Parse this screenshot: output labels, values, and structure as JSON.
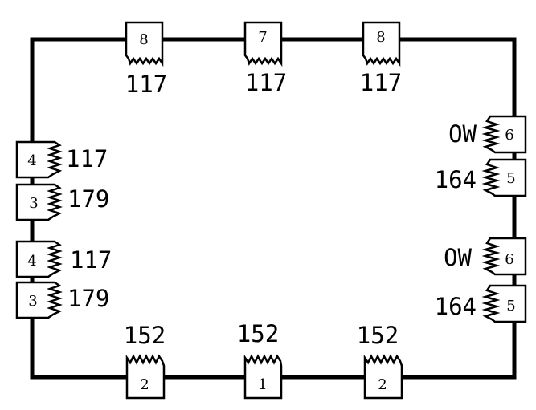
{
  "diagram": {
    "top": [
      {
        "piece": "8",
        "label": "117"
      },
      {
        "piece": "7",
        "label": "117"
      },
      {
        "piece": "8",
        "label": "117"
      }
    ],
    "bottom": [
      {
        "piece": "2",
        "label": "152"
      },
      {
        "piece": "1",
        "label": "152"
      },
      {
        "piece": "2",
        "label": "152"
      }
    ],
    "left": [
      {
        "piece": "4",
        "label": "117"
      },
      {
        "piece": "3",
        "label": "179"
      },
      {
        "piece": "4",
        "label": "117"
      },
      {
        "piece": "3",
        "label": "179"
      }
    ],
    "right": [
      {
        "piece": "6",
        "label": "OW"
      },
      {
        "piece": "5",
        "label": "164"
      },
      {
        "piece": "6",
        "label": "OW"
      },
      {
        "piece": "5",
        "label": "164"
      }
    ]
  }
}
